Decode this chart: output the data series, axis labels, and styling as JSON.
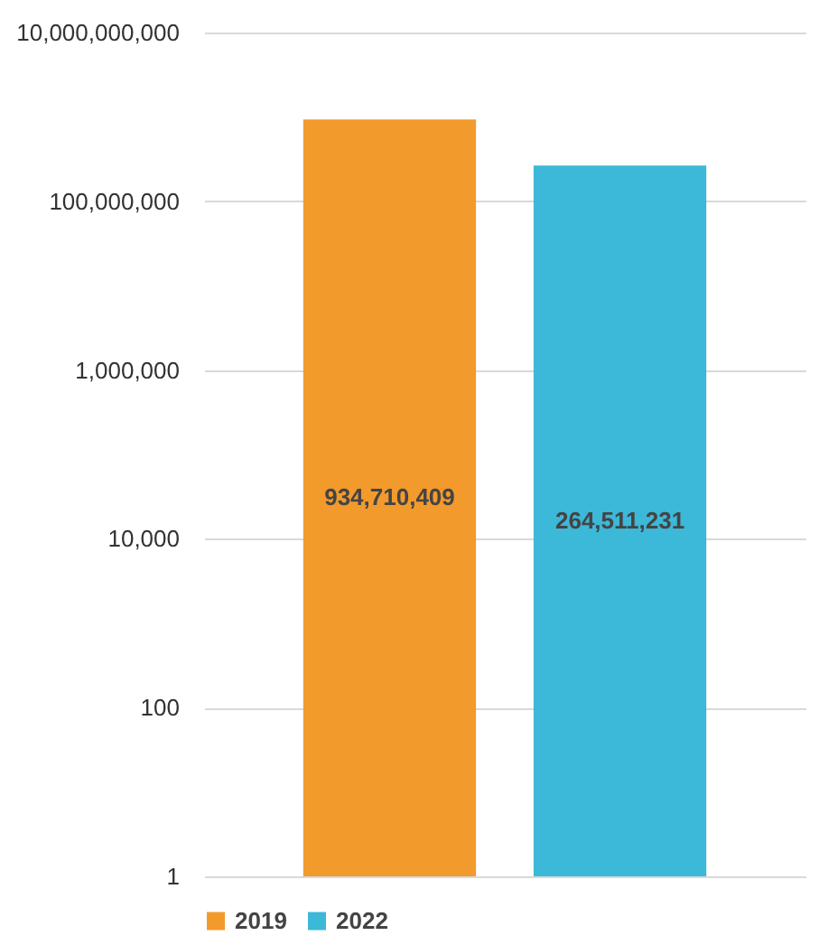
{
  "chart_data": {
    "type": "bar",
    "categories": [
      null
    ],
    "series": [
      {
        "name": "2019",
        "color": "#f39a2c",
        "values": [
          934710409
        ],
        "value_labels": [
          "934,710,409"
        ]
      },
      {
        "name": "2022",
        "color": "#3cb8d8",
        "values": [
          264511231
        ],
        "value_labels": [
          "264,511,231"
        ]
      }
    ],
    "log": "y",
    "ylim": [
      1,
      10000000000
    ],
    "yticks": [
      1,
      100,
      {
        "value": 10000,
        "label": "10,000"
      },
      {
        "value": 1000000,
        "label": "1,000,000"
      },
      {
        "value": 100000000,
        "label": "100,000,000"
      },
      {
        "value": 10000000000,
        "label": "10,000,000,000"
      }
    ],
    "grid": "y",
    "legend": "bottom"
  }
}
